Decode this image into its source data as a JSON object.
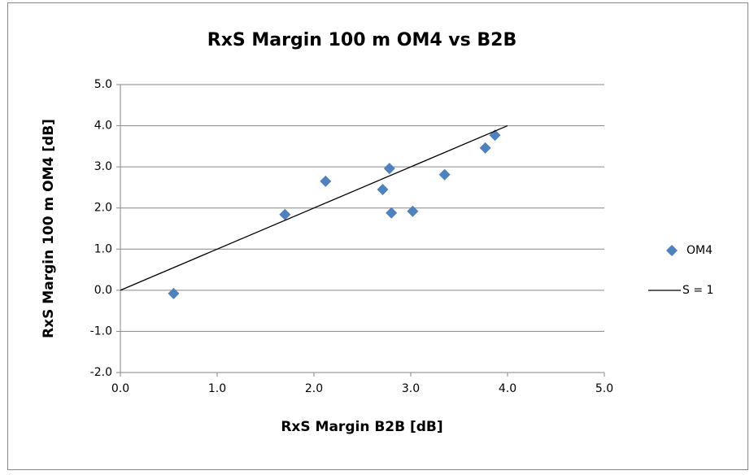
{
  "chart_data": {
    "type": "scatter",
    "title": "RxS Margin 100 m OM4 vs B2B",
    "x_label": "RxS Margin B2B [dB]",
    "y_label": "RxS Margin 100 m OM4 [dB]",
    "xlim": [
      0,
      5
    ],
    "ylim": [
      -2,
      5
    ],
    "xticks": [
      {
        "value": 0,
        "label": "0.0"
      },
      {
        "value": 1,
        "label": "1.0"
      },
      {
        "value": 2,
        "label": "2.0"
      },
      {
        "value": 3,
        "label": "3.0"
      },
      {
        "value": 4,
        "label": "4.0"
      },
      {
        "value": 5,
        "label": "5.0"
      }
    ],
    "yticks": [
      {
        "value": -2,
        "label": "-2.0"
      },
      {
        "value": -1,
        "label": "-1.0"
      },
      {
        "value": 0,
        "label": "0.0"
      },
      {
        "value": 1,
        "label": "1.0"
      },
      {
        "value": 2,
        "label": "2.0"
      },
      {
        "value": 3,
        "label": "3.0"
      },
      {
        "value": 4,
        "label": "4.0"
      },
      {
        "value": 5,
        "label": "5.0"
      }
    ],
    "grid": true,
    "legend": "right",
    "series": [
      {
        "name": "OM4",
        "type": "scatter",
        "color": "#4f81bd",
        "x": [
          0.55,
          1.7,
          2.12,
          2.71,
          2.78,
          2.8,
          3.02,
          3.35,
          3.77,
          3.87
        ],
        "values": [
          -0.08,
          1.84,
          2.65,
          2.45,
          2.96,
          1.88,
          1.92,
          2.81,
          3.46,
          3.77
        ]
      },
      {
        "name": "S = 1",
        "type": "line",
        "color": "#000000",
        "x": [
          0,
          4
        ],
        "values": [
          0,
          4
        ]
      }
    ]
  }
}
